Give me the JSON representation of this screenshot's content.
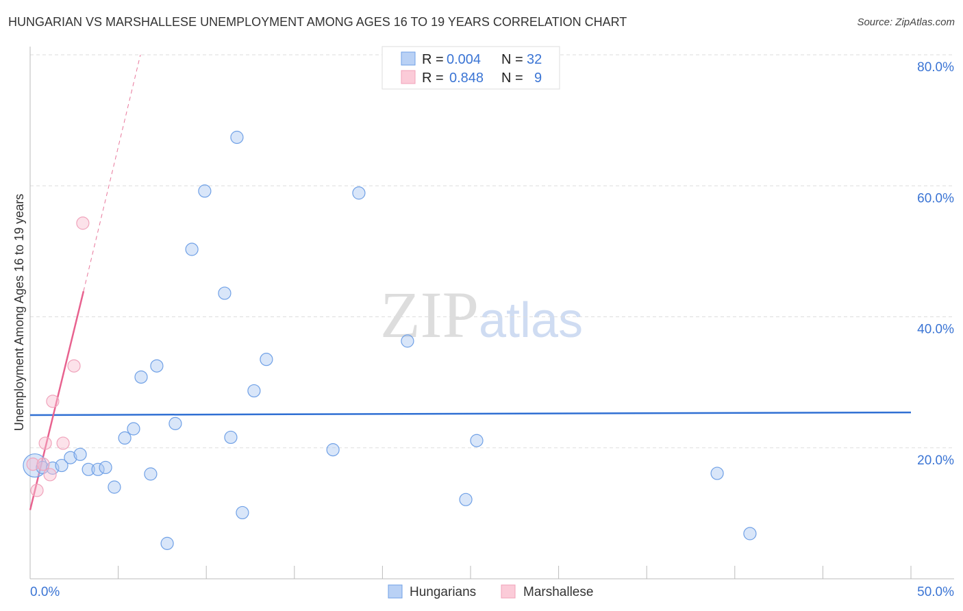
{
  "title": "HUNGARIAN VS MARSHALLESE UNEMPLOYMENT AMONG AGES 16 TO 19 YEARS CORRELATION CHART",
  "source": "Source: ZipAtlas.com",
  "watermark": "ZIPatlas",
  "chart_data": {
    "type": "scatter",
    "title": "HUNGARIAN VS MARSHALLESE UNEMPLOYMENT AMONG AGES 16 TO 19 YEARS CORRELATION CHART",
    "xlabel": "",
    "ylabel": "Unemployment Among Ages 16 to 19 years",
    "xlim": [
      0,
      50
    ],
    "ylim": [
      0,
      80
    ],
    "x_tick_labels": [
      "0.0%",
      "50.0%"
    ],
    "y_ticks": [
      20,
      40,
      60,
      80
    ],
    "y_tick_labels": [
      "20.0%",
      "40.0%",
      "60.0%",
      "80.0%"
    ],
    "legend_position": "top-center",
    "series": [
      {
        "name": "Hungarians",
        "color": "#6fa0e6",
        "R": "0.004",
        "N": "32",
        "r_label": "R =",
        "n_label": "N =",
        "trend": [
          [
            0,
            25.0
          ],
          [
            50,
            25.4
          ]
        ],
        "points": [
          [
            0.27,
            17.3
          ],
          [
            0.7,
            17.0
          ],
          [
            1.28,
            16.9
          ],
          [
            1.79,
            17.3
          ],
          [
            2.29,
            18.5
          ],
          [
            2.84,
            19.0
          ],
          [
            3.31,
            16.7
          ],
          [
            3.85,
            16.7
          ],
          [
            4.28,
            17.0
          ],
          [
            4.78,
            14.0
          ],
          [
            5.37,
            21.5
          ],
          [
            5.87,
            22.9
          ],
          [
            6.3,
            30.8
          ],
          [
            6.84,
            16.0
          ],
          [
            7.19,
            32.5
          ],
          [
            7.78,
            5.4
          ],
          [
            8.24,
            23.7
          ],
          [
            9.18,
            50.3
          ],
          [
            9.91,
            59.2
          ],
          [
            11.04,
            43.6
          ],
          [
            11.39,
            21.6
          ],
          [
            11.74,
            67.4
          ],
          [
            12.05,
            10.1
          ],
          [
            12.71,
            28.7
          ],
          [
            13.41,
            33.5
          ],
          [
            17.19,
            19.7
          ],
          [
            18.66,
            58.9
          ],
          [
            21.42,
            36.3
          ],
          [
            24.73,
            12.1
          ],
          [
            25.35,
            21.1
          ],
          [
            39.0,
            16.1
          ],
          [
            40.86,
            6.9
          ]
        ]
      },
      {
        "name": "Marshallese",
        "color": "#f2a0b8",
        "R": "0.848",
        "N": "9",
        "r_label": "R =",
        "n_label": "N =",
        "trend": [
          [
            0,
            10.5
          ],
          [
            3.03,
            43.9
          ]
        ],
        "trend_dashed": [
          [
            3.03,
            43.9
          ],
          [
            6.26,
            80
          ]
        ],
        "points": [
          [
            0.16,
            17.5
          ],
          [
            0.39,
            13.5
          ],
          [
            0.74,
            17.5
          ],
          [
            0.86,
            20.7
          ],
          [
            1.13,
            15.9
          ],
          [
            1.28,
            27.1
          ],
          [
            1.87,
            20.7
          ],
          [
            2.49,
            32.5
          ],
          [
            2.99,
            54.3
          ]
        ]
      }
    ]
  }
}
